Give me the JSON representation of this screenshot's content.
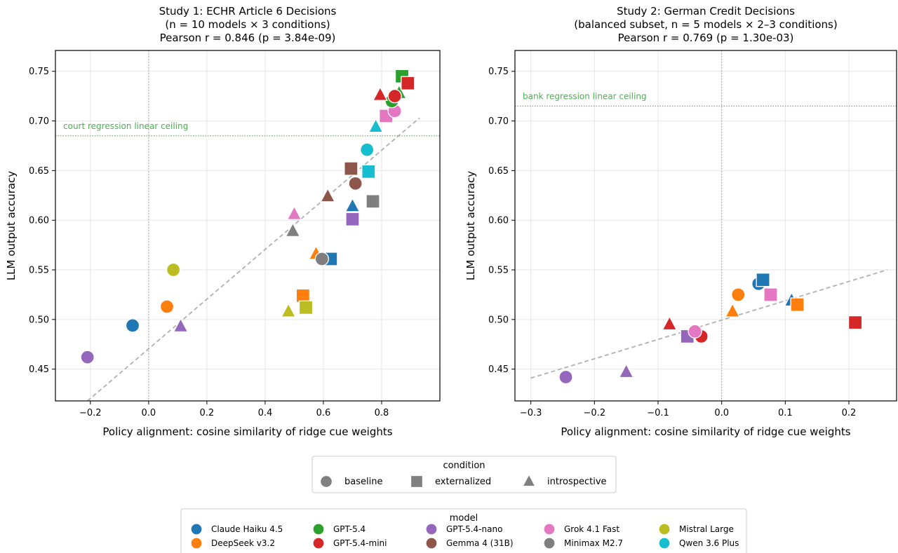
{
  "colors": {
    "Claude Haiku 4.5": "#1f77b4",
    "DeepSeek v3.2": "#ff7f0e",
    "GPT-5.4": "#2ca02c",
    "GPT-5.4-mini": "#d62728",
    "GPT-5.4-nano": "#9467bd",
    "Gemma 4 (31B)": "#8c564b",
    "Grok 4.1 Fast": "#e377c2",
    "Minimax M2.7": "#7f7f7f",
    "Mistral Large": "#bcbd22",
    "Qwen 3.6 Plus": "#17becf",
    "ceiling": "#4caf50",
    "fit": "#b0b0b0"
  },
  "chart_data": [
    {
      "type": "scatter",
      "title_lines": [
        "Study 1: ECHR Article 6 Decisions",
        "(n = 10 models × 3 conditions)",
        "Pearson r = 0.846  (p = 3.84e-09)"
      ],
      "xlabel": "Policy alignment: cosine similarity of ridge cue weights",
      "ylabel": "LLM output accuracy",
      "xlim": [
        -0.32,
        1.0
      ],
      "ylim": [
        0.418,
        0.771
      ],
      "xticks": [
        -0.2,
        0.0,
        0.2,
        0.4,
        0.6,
        0.8
      ],
      "xtick_labels": [
        "−0.2",
        "0.0",
        "0.2",
        "0.4",
        "0.6",
        "0.8"
      ],
      "yticks": [
        0.45,
        0.5,
        0.55,
        0.6,
        0.65,
        0.7,
        0.75
      ],
      "ytick_labels": [
        "0.45",
        "0.50",
        "0.55",
        "0.60",
        "0.65",
        "0.70",
        "0.75"
      ],
      "grid": true,
      "ceiling": {
        "y": 0.685,
        "label": "court regression linear ceiling"
      },
      "zero_line_x": 0.0,
      "fit_line": {
        "x": [
          -0.21,
          0.93
        ],
        "y": [
          0.418,
          0.703
        ]
      },
      "points": [
        {
          "model": "Claude Haiku 4.5",
          "condition": "baseline",
          "x": -0.055,
          "y": 0.494
        },
        {
          "model": "DeepSeek v3.2",
          "condition": "baseline",
          "x": 0.063,
          "y": 0.513
        },
        {
          "model": "Mistral Large",
          "condition": "baseline",
          "x": 0.085,
          "y": 0.55
        },
        {
          "model": "GPT-5.4-nano",
          "condition": "baseline",
          "x": -0.21,
          "y": 0.462
        },
        {
          "model": "GPT-5.4-nano",
          "condition": "introspective",
          "x": 0.11,
          "y": 0.493
        },
        {
          "model": "Mistral Large",
          "condition": "introspective",
          "x": 0.48,
          "y": 0.508
        },
        {
          "model": "DeepSeek v3.2",
          "condition": "externalized",
          "x": 0.53,
          "y": 0.524
        },
        {
          "model": "Mistral Large",
          "condition": "externalized",
          "x": 0.54,
          "y": 0.512
        },
        {
          "model": "DeepSeek v3.2",
          "condition": "introspective",
          "x": 0.575,
          "y": 0.566
        },
        {
          "model": "Claude Haiku 4.5",
          "condition": "externalized",
          "x": 0.625,
          "y": 0.561
        },
        {
          "model": "Minimax M2.7",
          "condition": "baseline",
          "x": 0.595,
          "y": 0.561
        },
        {
          "model": "Grok 4.1 Fast",
          "condition": "introspective",
          "x": 0.5,
          "y": 0.606
        },
        {
          "model": "Minimax M2.7",
          "condition": "introspective",
          "x": 0.495,
          "y": 0.589
        },
        {
          "model": "Gemma 4 (31B)",
          "condition": "introspective",
          "x": 0.615,
          "y": 0.624
        },
        {
          "model": "GPT-5.4-nano",
          "condition": "externalized",
          "x": 0.7,
          "y": 0.601
        },
        {
          "model": "Claude Haiku 4.5",
          "condition": "introspective",
          "x": 0.7,
          "y": 0.614
        },
        {
          "model": "Minimax M2.7",
          "condition": "externalized",
          "x": 0.77,
          "y": 0.619
        },
        {
          "model": "Gemma 4 (31B)",
          "condition": "baseline",
          "x": 0.71,
          "y": 0.637
        },
        {
          "model": "Gemma 4 (31B)",
          "condition": "externalized",
          "x": 0.695,
          "y": 0.652
        },
        {
          "model": "Qwen 3.6 Plus",
          "condition": "externalized",
          "x": 0.755,
          "y": 0.649
        },
        {
          "model": "Qwen 3.6 Plus",
          "condition": "baseline",
          "x": 0.75,
          "y": 0.671
        },
        {
          "model": "Qwen 3.6 Plus",
          "condition": "introspective",
          "x": 0.78,
          "y": 0.694
        },
        {
          "model": "Grok 4.1 Fast",
          "condition": "externalized",
          "x": 0.815,
          "y": 0.705
        },
        {
          "model": "Grok 4.1 Fast",
          "condition": "baseline",
          "x": 0.845,
          "y": 0.71
        },
        {
          "model": "GPT-5.4",
          "condition": "baseline",
          "x": 0.835,
          "y": 0.72
        },
        {
          "model": "GPT-5.4",
          "condition": "introspective",
          "x": 0.86,
          "y": 0.728
        },
        {
          "model": "GPT-5.4-mini",
          "condition": "introspective",
          "x": 0.795,
          "y": 0.726
        },
        {
          "model": "GPT-5.4-mini",
          "condition": "baseline",
          "x": 0.845,
          "y": 0.725
        },
        {
          "model": "GPT-5.4",
          "condition": "externalized",
          "x": 0.87,
          "y": 0.745
        },
        {
          "model": "GPT-5.4-mini",
          "condition": "externalized",
          "x": 0.89,
          "y": 0.738
        }
      ]
    },
    {
      "type": "scatter",
      "title_lines": [
        "Study 2: German Credit Decisions",
        "(balanced subset, n = 5 models × 2–3 conditions)",
        "Pearson r = 0.769  (p = 1.30e-03)"
      ],
      "xlabel": "Policy alignment: cosine similarity of ridge cue weights",
      "ylabel": "LLM output accuracy",
      "xlim": [
        -0.325,
        0.275
      ],
      "ylim": [
        0.418,
        0.771
      ],
      "xticks": [
        -0.3,
        -0.2,
        -0.1,
        0.0,
        0.1,
        0.2
      ],
      "xtick_labels": [
        "−0.3",
        "−0.2",
        "−0.1",
        "0.0",
        "0.1",
        "0.2"
      ],
      "yticks": [
        0.45,
        0.5,
        0.55,
        0.6,
        0.65,
        0.7,
        0.75
      ],
      "ytick_labels": [
        "0.45",
        "0.50",
        "0.55",
        "0.60",
        "0.65",
        "0.70",
        "0.75"
      ],
      "grid": true,
      "ceiling": {
        "y": 0.715,
        "label": "bank regression linear ceiling"
      },
      "zero_line_x": 0.0,
      "fit_line": {
        "x": [
          -0.3,
          0.26
        ],
        "y": [
          0.441,
          0.55
        ]
      },
      "points": [
        {
          "model": "GPT-5.4-nano",
          "condition": "baseline",
          "x": -0.245,
          "y": 0.442
        },
        {
          "model": "GPT-5.4-nano",
          "condition": "introspective",
          "x": -0.15,
          "y": 0.447
        },
        {
          "model": "GPT-5.4-mini",
          "condition": "introspective",
          "x": -0.082,
          "y": 0.495
        },
        {
          "model": "GPT-5.4-nano",
          "condition": "externalized",
          "x": -0.054,
          "y": 0.483
        },
        {
          "model": "GPT-5.4-mini",
          "condition": "baseline",
          "x": -0.032,
          "y": 0.483
        },
        {
          "model": "Grok 4.1 Fast",
          "condition": "baseline",
          "x": -0.042,
          "y": 0.488
        },
        {
          "model": "DeepSeek v3.2",
          "condition": "introspective",
          "x": 0.017,
          "y": 0.508
        },
        {
          "model": "DeepSeek v3.2",
          "condition": "baseline",
          "x": 0.026,
          "y": 0.525
        },
        {
          "model": "Claude Haiku 4.5",
          "condition": "baseline",
          "x": 0.058,
          "y": 0.536
        },
        {
          "model": "Claude Haiku 4.5",
          "condition": "externalized",
          "x": 0.065,
          "y": 0.54
        },
        {
          "model": "Grok 4.1 Fast",
          "condition": "externalized",
          "x": 0.077,
          "y": 0.525
        },
        {
          "model": "Claude Haiku 4.5",
          "condition": "introspective",
          "x": 0.11,
          "y": 0.519
        },
        {
          "model": "DeepSeek v3.2",
          "condition": "externalized",
          "x": 0.119,
          "y": 0.515
        },
        {
          "model": "GPT-5.4-mini",
          "condition": "externalized",
          "x": 0.21,
          "y": 0.497
        }
      ]
    }
  ],
  "legend_condition": {
    "title": "condition",
    "items": [
      {
        "label": "baseline",
        "marker": "circle"
      },
      {
        "label": "externalized",
        "marker": "square"
      },
      {
        "label": "introspective",
        "marker": "triangle"
      }
    ]
  },
  "legend_model": {
    "title": "model",
    "items": [
      "Claude Haiku 4.5",
      "DeepSeek v3.2",
      "GPT-5.4",
      "GPT-5.4-mini",
      "GPT-5.4-nano",
      "Gemma 4 (31B)",
      "Grok 4.1 Fast",
      "Minimax M2.7",
      "Mistral Large",
      "Qwen 3.6 Plus"
    ]
  }
}
